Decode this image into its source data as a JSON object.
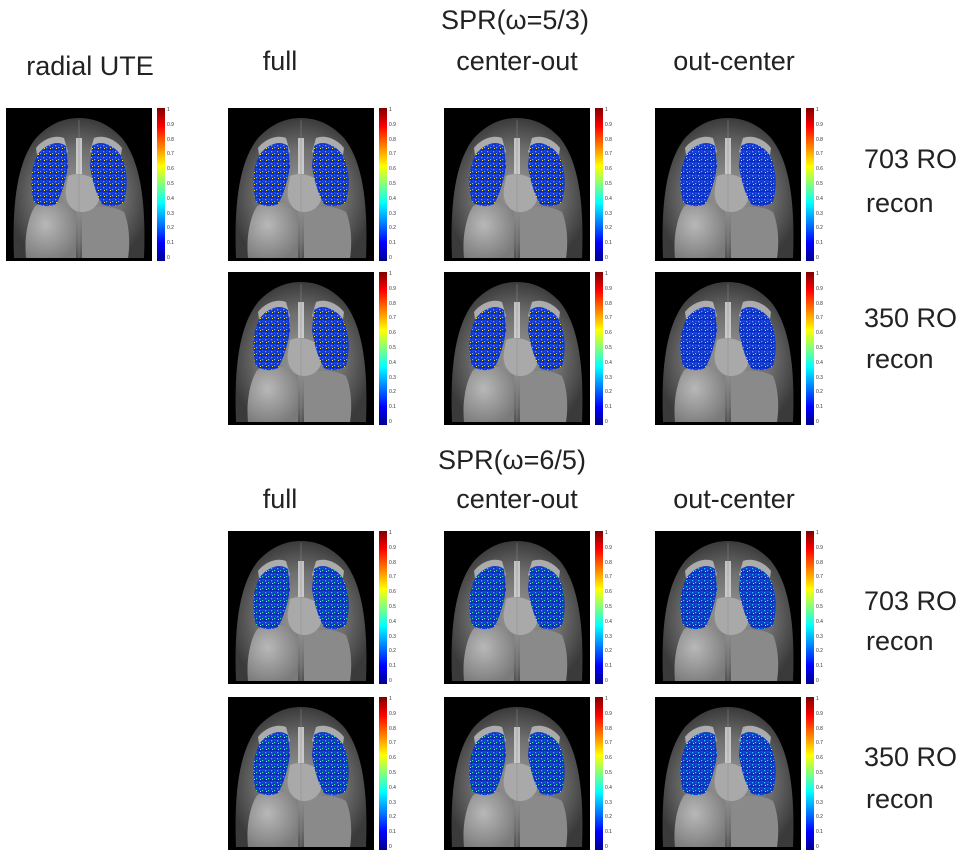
{
  "header": {
    "spr_top": "SPR(ω=5/3)",
    "spr_bottom": "SPR(ω=6/5)"
  },
  "columns": {
    "radial_ute": "radial UTE",
    "full": "full",
    "center_out": "center-out",
    "out_center": "out-center"
  },
  "rows": {
    "ro703_top": [
      "703 RO",
      "recon"
    ],
    "ro350_top": [
      "350 RO",
      "recon"
    ],
    "ro703_bottom": [
      "703 RO",
      "recon"
    ],
    "ro350_bottom": [
      "350 RO",
      "recon"
    ]
  },
  "colorbar": {
    "ticks": [
      "1",
      "0.9",
      "0.8",
      "0.7",
      "0.6",
      "0.5",
      "0.4",
      "0.3",
      "0.2",
      "0.1",
      "0"
    ]
  },
  "colors": {
    "background": "#ffffff",
    "image_background": "#000000"
  }
}
